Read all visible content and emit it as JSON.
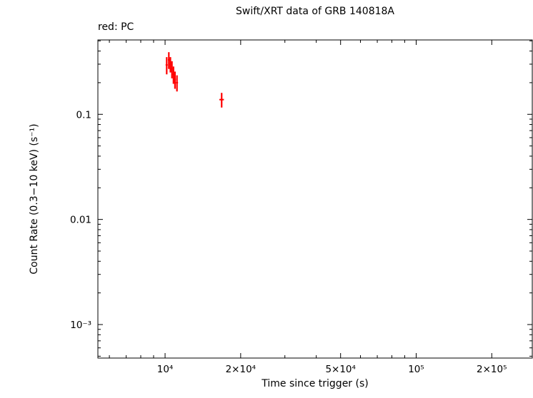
{
  "chart_data": {
    "type": "scatter",
    "marker": "error-bars",
    "title": "Swift/XRT data of GRB 140818A",
    "legend_label": "red: PC",
    "xlabel": "Time since trigger (s)",
    "ylabel": "Count Rate (0.3−10 keV) (s⁻¹)",
    "xscale": "log",
    "yscale": "log",
    "grid": false,
    "xlim": [
      5400,
      290000
    ],
    "ylim": [
      0.00048,
      0.51
    ],
    "x_ticks": [
      {
        "value": 10000,
        "label": "10⁴"
      },
      {
        "value": 20000,
        "label": "2×10⁴"
      },
      {
        "value": 50000,
        "label": "5×10⁴"
      },
      {
        "value": 100000,
        "label": "10⁵"
      },
      {
        "value": 200000,
        "label": "2×10⁵"
      }
    ],
    "y_ticks": [
      {
        "value": 0.1,
        "label": "0.1"
      },
      {
        "value": 0.01,
        "label": "0.01"
      },
      {
        "value": 0.001,
        "label": "10⁻³"
      }
    ],
    "series": [
      {
        "name": "PC",
        "color": "#ff0000",
        "points": [
          {
            "t": 10150,
            "t_err": 100,
            "rate": 0.295,
            "rate_err": 0.055
          },
          {
            "t": 10350,
            "t_err": 90,
            "rate": 0.33,
            "rate_err": 0.06
          },
          {
            "t": 10500,
            "t_err": 80,
            "rate": 0.3,
            "rate_err": 0.05
          },
          {
            "t": 10650,
            "t_err": 80,
            "rate": 0.27,
            "rate_err": 0.05
          },
          {
            "t": 10800,
            "t_err": 80,
            "rate": 0.24,
            "rate_err": 0.045
          },
          {
            "t": 10950,
            "t_err": 90,
            "rate": 0.215,
            "rate_err": 0.04
          },
          {
            "t": 11150,
            "t_err": 110,
            "rate": 0.2,
            "rate_err": 0.035
          },
          {
            "t": 16800,
            "t_err": 350,
            "rate": 0.138,
            "rate_err": 0.022
          }
        ]
      }
    ]
  }
}
